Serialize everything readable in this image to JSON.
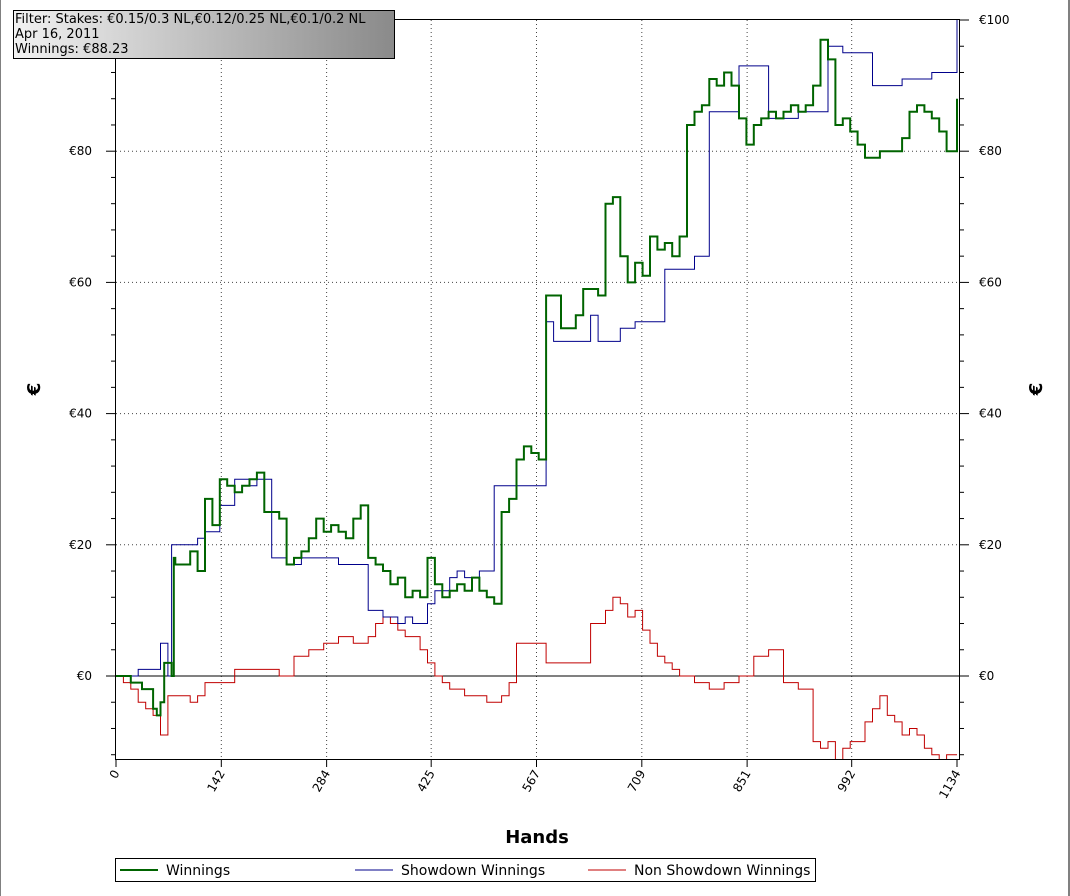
{
  "info_box": {
    "line1": "Filter: Stakes: €0.15/0.3 NL,€0.12/0.25 NL,€0.1/0.2 NL",
    "line2": "Apr 16, 2011",
    "line3": "Winnings: €88.23"
  },
  "colors": {
    "winnings": "#006400",
    "showdown": "#00008b",
    "non_showdown": "#c00000",
    "grid": "#555555"
  },
  "chart_data": {
    "type": "line",
    "xlabel": "Hands",
    "ylabel_left": "€",
    "ylabel_right": "€",
    "xlim": [
      0,
      1134
    ],
    "ylim": [
      -13,
      100
    ],
    "x_ticks": [
      0,
      142,
      284,
      425,
      567,
      709,
      851,
      992,
      1134
    ],
    "x_tick_labels": [
      "0",
      "142",
      "284",
      "425",
      "567",
      "709",
      "851",
      "992",
      "1134"
    ],
    "y_ticks": [
      0,
      20,
      40,
      60,
      80,
      100
    ],
    "y_tick_labels_left": [
      "€0",
      "€20",
      "€40",
      "€60",
      "€80",
      ""
    ],
    "y_tick_labels_right": [
      "€0",
      "€20",
      "€40",
      "€60",
      "€80",
      "€100"
    ],
    "grid": true,
    "legend_position": "bottom",
    "series": [
      {
        "name": "Winnings",
        "color": "#006400",
        "x": [
          0,
          20,
          35,
          50,
          55,
          60,
          65,
          75,
          78,
          80,
          100,
          110,
          120,
          130,
          140,
          150,
          160,
          170,
          180,
          190,
          200,
          210,
          220,
          230,
          240,
          250,
          260,
          270,
          280,
          290,
          300,
          310,
          320,
          330,
          340,
          350,
          360,
          370,
          380,
          390,
          400,
          410,
          420,
          430,
          440,
          450,
          460,
          470,
          480,
          490,
          500,
          510,
          520,
          530,
          540,
          550,
          560,
          570,
          580,
          590,
          600,
          610,
          620,
          630,
          640,
          650,
          660,
          670,
          680,
          690,
          700,
          710,
          720,
          730,
          740,
          750,
          760,
          770,
          780,
          790,
          800,
          810,
          820,
          830,
          840,
          850,
          860,
          870,
          880,
          890,
          900,
          910,
          920,
          930,
          940,
          950,
          960,
          970,
          980,
          990,
          1000,
          1010,
          1020,
          1030,
          1040,
          1050,
          1060,
          1070,
          1080,
          1090,
          1100,
          1110,
          1120,
          1134
        ],
        "y": [
          0,
          -1,
          -2,
          -5,
          -6,
          -4,
          2,
          0,
          18,
          17,
          19,
          16,
          27,
          23,
          30,
          29,
          28,
          29,
          30,
          31,
          25,
          25,
          24,
          17,
          18,
          19,
          21,
          24,
          22,
          23,
          22,
          21,
          24,
          26,
          18,
          17,
          16,
          14,
          15,
          12,
          13,
          12,
          18,
          14,
          12,
          13,
          14,
          13,
          15,
          13,
          12,
          11,
          25,
          27,
          33,
          35,
          34,
          33,
          58,
          58,
          53,
          53,
          55,
          59,
          59,
          58,
          72,
          73,
          64,
          60,
          63,
          61,
          67,
          65,
          66,
          64,
          67,
          84,
          86,
          87,
          91,
          90,
          92,
          90,
          85,
          81,
          84,
          85,
          86,
          85,
          86,
          87,
          86,
          87,
          90,
          97,
          94,
          84,
          85,
          83,
          81,
          79,
          79,
          80,
          80,
          80,
          82,
          86,
          87,
          86,
          85,
          83,
          80,
          88
        ]
      },
      {
        "name": "Showdown Winnings",
        "color": "#00008b",
        "x": [
          0,
          30,
          40,
          55,
          60,
          70,
          75,
          80,
          100,
          110,
          120,
          140,
          160,
          180,
          190,
          200,
          210,
          220,
          230,
          250,
          280,
          300,
          320,
          340,
          350,
          360,
          370,
          380,
          390,
          400,
          420,
          430,
          440,
          450,
          460,
          470,
          480,
          490,
          500,
          510,
          540,
          567,
          580,
          590,
          600,
          620,
          640,
          650,
          660,
          680,
          700,
          720,
          740,
          760,
          780,
          800,
          820,
          840,
          860,
          880,
          900,
          920,
          940,
          960,
          980,
          1000,
          1020,
          1040,
          1060,
          1080,
          1100,
          1120,
          1134
        ],
        "y": [
          0,
          1,
          1,
          1,
          5,
          0,
          20,
          20,
          20,
          21,
          22,
          26,
          30,
          29,
          30,
          30,
          18,
          18,
          17,
          18,
          18,
          17,
          17,
          10,
          10,
          9,
          9,
          8,
          9,
          8,
          11,
          13,
          13,
          15,
          16,
          15,
          15,
          16,
          16,
          29,
          29,
          29,
          54,
          51,
          51,
          51,
          55,
          51,
          51,
          53,
          54,
          54,
          62,
          62,
          64,
          86,
          86,
          93,
          93,
          85,
          85,
          86,
          86,
          96,
          95,
          95,
          90,
          90,
          91,
          91,
          92,
          92,
          100
        ]
      },
      {
        "name": "Non Showdown Winnings",
        "color": "#c00000",
        "x": [
          0,
          10,
          20,
          30,
          40,
          50,
          60,
          70,
          80,
          90,
          100,
          110,
          120,
          140,
          160,
          180,
          200,
          220,
          240,
          260,
          280,
          300,
          320,
          340,
          350,
          360,
          370,
          380,
          390,
          400,
          410,
          420,
          430,
          440,
          450,
          460,
          470,
          480,
          490,
          500,
          510,
          520,
          530,
          540,
          560,
          580,
          600,
          620,
          640,
          660,
          670,
          680,
          690,
          700,
          710,
          720,
          730,
          740,
          750,
          760,
          780,
          800,
          820,
          840,
          860,
          880,
          900,
          920,
          940,
          950,
          960,
          970,
          980,
          990,
          1000,
          1010,
          1020,
          1030,
          1040,
          1050,
          1060,
          1070,
          1080,
          1090,
          1100,
          1110,
          1120,
          1134
        ],
        "y": [
          0,
          -1,
          -2,
          -4,
          -5,
          -6,
          -9,
          -3,
          -3,
          -3,
          -4,
          -3,
          -1,
          -1,
          1,
          1,
          1,
          0,
          3,
          4,
          5,
          6,
          5,
          6,
          8,
          9,
          8,
          7,
          6,
          6,
          4,
          2,
          0,
          -1,
          -2,
          -2,
          -3,
          -3,
          -3,
          -4,
          -4,
          -3,
          -1,
          5,
          5,
          2,
          2,
          2,
          8,
          10,
          12,
          11,
          9,
          10,
          7,
          5,
          3,
          2,
          1,
          0,
          -1,
          -2,
          -1,
          0,
          3,
          4,
          -1,
          -2,
          -10,
          -11,
          -10,
          -13,
          -11,
          -10,
          -10,
          -7,
          -5,
          -3,
          -6,
          -7,
          -9,
          -8,
          -9,
          -11,
          -12,
          -13,
          -12,
          -12
        ]
      }
    ]
  }
}
